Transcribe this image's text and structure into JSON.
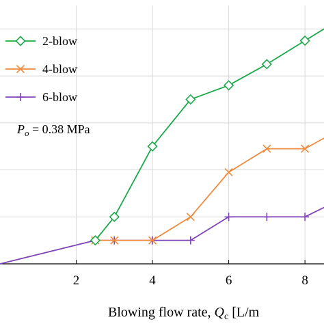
{
  "chart_data": {
    "type": "line",
    "title": "",
    "xlabel_prefix": "Blowing flow rate, ",
    "xlabel_symbol": "Q",
    "xlabel_sub": "c",
    "xlabel_suffix": " [L/m",
    "xlim": [
      0,
      8.5
    ],
    "ylim": [
      0,
      11
    ],
    "x_ticks": [
      2,
      4,
      6,
      8
    ],
    "y_gridlines": [
      2,
      4,
      6,
      8,
      10
    ],
    "grid": true,
    "legend_position": "top-left",
    "annotation": {
      "symbol": "P",
      "sub": "o",
      "text": " = 0.38 MPa"
    },
    "series": [
      {
        "name": "2-blow",
        "color": "#1aa94a",
        "marker": "diamond",
        "x": [
          2.5,
          3,
          4,
          5,
          6,
          7,
          8,
          9
        ],
        "y": [
          1,
          2,
          5,
          7,
          7.6,
          8.5,
          9.5,
          10.5
        ]
      },
      {
        "name": "4-blow",
        "color": "#f08a3c",
        "marker": "x",
        "x": [
          2.5,
          3,
          4,
          5,
          6,
          7,
          8,
          9
        ],
        "y": [
          1,
          1,
          1,
          2,
          3.9,
          4.9,
          4.9,
          5.8
        ]
      },
      {
        "name": "6-blow",
        "color": "#7f44b8",
        "marker": "plus",
        "x": [
          0,
          2.5,
          3,
          4,
          5,
          6,
          7,
          8,
          9
        ],
        "y": [
          0,
          1,
          1,
          1,
          1,
          2,
          2,
          2,
          2.8
        ]
      }
    ]
  }
}
